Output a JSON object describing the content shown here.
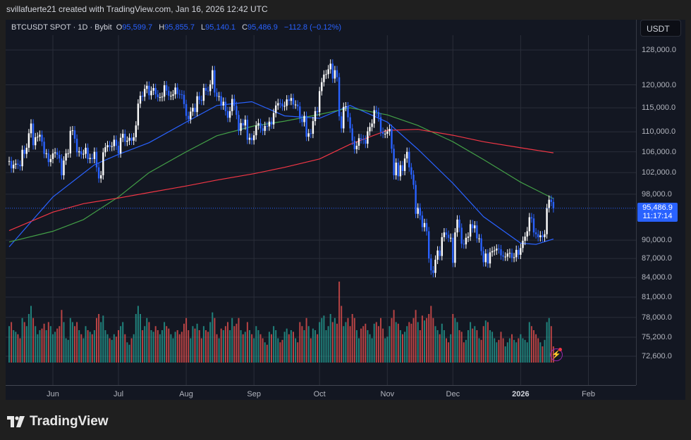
{
  "credit": "svillafuerte21 created with TradingView.com, Jan 16, 2026 12:42 UTC",
  "legend": {
    "symbol": "BTCUSDT SPOT · 1D · Bybit",
    "o_label": "O",
    "open": "95,599.7",
    "h_label": "H",
    "high": "95,855.7",
    "l_label": "L",
    "low": "95,140.1",
    "c_label": "C",
    "close": "95,486.9",
    "change": "−112.8 (−0.12%)"
  },
  "price_axis": {
    "unit": "USDT",
    "current_price": "95,486.9",
    "countdown": "11:17:14"
  },
  "logo_text": "TradingView",
  "colors": {
    "background": "#131722",
    "up_candle": "#ffffff",
    "down_candle": "#2962ff",
    "volume_up": "#26a69a",
    "volume_down": "#ef5350",
    "ma_fast": "#2962ff",
    "ma_mid": "#43a047",
    "ma_slow": "#f23645",
    "last_price": "#2962ff"
  },
  "chart_data": {
    "type": "candlestick",
    "title": "",
    "y_scale": "log",
    "ylim": [
      72000,
      130000
    ],
    "grid": true,
    "y_ticks": [
      "128,000.0",
      "120,000.0",
      "115,000.0",
      "110,000.0",
      "106,000.0",
      "102,000.0",
      "98,000.0",
      "90,000.0",
      "87,000.0",
      "84,000.0",
      "81,000.0",
      "78,000.0",
      "75,200.0",
      "72,600.0"
    ],
    "y_tick_values": [
      128000,
      120000,
      115000,
      110000,
      106000,
      102000,
      98000,
      90000,
      87000,
      84000,
      81000,
      78000,
      75200,
      72600
    ],
    "x_ticks": [
      {
        "label": "Jun",
        "date": "2025-06-01"
      },
      {
        "label": "Jul",
        "date": "2025-07-01"
      },
      {
        "label": "Aug",
        "date": "2025-08-01"
      },
      {
        "label": "Sep",
        "date": "2025-09-01"
      },
      {
        "label": "Oct",
        "date": "2025-10-01"
      },
      {
        "label": "Nov",
        "date": "2025-11-01"
      },
      {
        "label": "Dec",
        "date": "2025-12-01"
      },
      {
        "label": "2026",
        "date": "2026-01-01"
      },
      {
        "label": "Feb",
        "date": "2026-02-01"
      }
    ],
    "start_date": "2025-05-12",
    "end_date": "2026-01-16",
    "daily_close": [
      104200,
      102800,
      103500,
      103700,
      103500,
      103200,
      106400,
      105600,
      106800,
      109700,
      111700,
      107300,
      108900,
      109000,
      109400,
      108000,
      105600,
      105700,
      104000,
      104600,
      105700,
      105900,
      105400,
      104700,
      101500,
      104300,
      105700,
      105700,
      110200,
      110300,
      108600,
      105900,
      106100,
      105500,
      105600,
      106800,
      104600,
      104800,
      104600,
      106000,
      103000,
      100900,
      101500,
      105900,
      106900,
      107300,
      107000,
      107100,
      108400,
      107200,
      105700,
      108800,
      109600,
      108000,
      108200,
      108800,
      108200,
      108900,
      111300,
      115900,
      117600,
      117400,
      119100,
      119800,
      117700,
      118700,
      119300,
      117900,
      117300,
      117300,
      117400,
      119900,
      118700,
      117600,
      117600,
      117900,
      119400,
      118000,
      117900,
      117800,
      115800,
      113300,
      112600,
      114200,
      115000,
      114100,
      117500,
      116700,
      116500,
      119300,
      118700,
      118600,
      120100,
      123300,
      118300,
      117400,
      117500,
      115500,
      116300,
      114300,
      112900,
      114300,
      116900,
      115400,
      113500,
      110200,
      111800,
      111300,
      112500,
      108400,
      108800,
      108300,
      109300,
      111300,
      111800,
      110700,
      110200,
      111200,
      111100,
      112100,
      111500,
      113900,
      115500,
      116000,
      115900,
      115300,
      115400,
      116800,
      116500,
      117100,
      115700,
      115700,
      115300,
      112700,
      112000,
      113300,
      109000,
      109700,
      109600,
      112200,
      114300,
      114100,
      118600,
      120600,
      122300,
      122400,
      123500,
      124800,
      121400,
      123300,
      121700,
      113200,
      110700,
      115200,
      115300,
      113000,
      110700,
      108200,
      106500,
      107200,
      108700,
      108500,
      108400,
      107600,
      110100,
      111000,
      111700,
      114500,
      114100,
      113000,
      110000,
      109600,
      109600,
      110100,
      110600,
      106600,
      101500,
      103900,
      101300,
      103400,
      102300,
      104700,
      106000,
      103000,
      101600,
      99700,
      94500,
      95600,
      94200,
      92200,
      92900,
      91500,
      87000,
      85100,
      84700,
      86800,
      88300,
      87400,
      90500,
      91300,
      90900,
      90400,
      90400,
      86300,
      91300,
      93500,
      92100,
      89400,
      89300,
      90400,
      90600,
      92700,
      92000,
      92500,
      90300,
      90300,
      88200,
      86400,
      87800,
      86200,
      88000,
      88200,
      88300,
      88600,
      88500,
      87500,
      87300,
      87300,
      87800,
      87900,
      87100,
      87200,
      88400,
      87600,
      88700,
      89900,
      90600,
      91500,
      93900,
      93700,
      91300,
      91000,
      90500,
      90800,
      90500,
      91000,
      95500,
      97000,
      96600,
      95486.9
    ],
    "daily_volume_relative": [
      45,
      50,
      40,
      38,
      35,
      30,
      55,
      50,
      45,
      60,
      70,
      55,
      45,
      35,
      40,
      42,
      48,
      40,
      50,
      45,
      35,
      38,
      42,
      45,
      65,
      50,
      30,
      28,
      55,
      50,
      45,
      50,
      40,
      35,
      30,
      45,
      40,
      38,
      35,
      40,
      55,
      60,
      50,
      58,
      40,
      35,
      30,
      28,
      35,
      32,
      40,
      45,
      50,
      35,
      25,
      22,
      30,
      35,
      60,
      70,
      60,
      40,
      45,
      55,
      50,
      40,
      38,
      45,
      40,
      35,
      40,
      50,
      45,
      42,
      35,
      30,
      38,
      40,
      35,
      38,
      48,
      55,
      40,
      30,
      45,
      42,
      48,
      40,
      30,
      45,
      40,
      38,
      50,
      62,
      55,
      35,
      30,
      42,
      40,
      45,
      50,
      40,
      55,
      45,
      48,
      55,
      40,
      35,
      38,
      50,
      40,
      35,
      30,
      45,
      40,
      35,
      30,
      25,
      22,
      38,
      35,
      45,
      40,
      30,
      25,
      28,
      38,
      42,
      35,
      40,
      38,
      30,
      25,
      50,
      45,
      40,
      55,
      45,
      30,
      42,
      40,
      35,
      50,
      55,
      58,
      40,
      45,
      60,
      50,
      55,
      48,
      100,
      70,
      45,
      50,
      55,
      45,
      60,
      55,
      40,
      30,
      42,
      45,
      48,
      40,
      35,
      30,
      48,
      50,
      45,
      55,
      42,
      30,
      32,
      45,
      55,
      65,
      50,
      48,
      40,
      35,
      38,
      45,
      50,
      48,
      55,
      65,
      50,
      40,
      58,
      52,
      55,
      60,
      70,
      55,
      45,
      40,
      35,
      48,
      40,
      30,
      25,
      35,
      60,
      55,
      50,
      40,
      38,
      25,
      28,
      40,
      50,
      42,
      45,
      40,
      30,
      28,
      45,
      52,
      50,
      40,
      38,
      30,
      25,
      28,
      38,
      30,
      20,
      25,
      30,
      35,
      28,
      25,
      30,
      35,
      30,
      28,
      25,
      50,
      45,
      40,
      35,
      30,
      25,
      20,
      28,
      50,
      55,
      45,
      20
    ],
    "moving_averages": [
      {
        "key": "ma_fast",
        "points": [
          [
            "2025-05-12",
            88900
          ],
          [
            "2025-06-01",
            97500
          ],
          [
            "2025-06-20",
            103500
          ],
          [
            "2025-07-01",
            105500
          ],
          [
            "2025-07-15",
            107800
          ],
          [
            "2025-08-01",
            112000
          ],
          [
            "2025-08-15",
            115500
          ],
          [
            "2025-08-31",
            116300
          ],
          [
            "2025-09-15",
            113300
          ],
          [
            "2025-10-01",
            112800
          ],
          [
            "2025-10-15",
            115500
          ],
          [
            "2025-11-01",
            112000
          ],
          [
            "2025-11-15",
            106500
          ],
          [
            "2025-12-01",
            100000
          ],
          [
            "2025-12-15",
            94000
          ],
          [
            "2026-01-01",
            89500
          ],
          [
            "2026-01-08",
            89300
          ],
          [
            "2026-01-16",
            90200
          ]
        ]
      },
      {
        "key": "ma_mid",
        "points": [
          [
            "2025-05-12",
            89700
          ],
          [
            "2025-06-01",
            91500
          ],
          [
            "2025-06-15",
            93500
          ],
          [
            "2025-07-01",
            97500
          ],
          [
            "2025-07-15",
            102000
          ],
          [
            "2025-08-01",
            106000
          ],
          [
            "2025-08-15",
            109200
          ],
          [
            "2025-09-01",
            111200
          ],
          [
            "2025-09-15",
            112200
          ],
          [
            "2025-10-01",
            113600
          ],
          [
            "2025-10-15",
            115000
          ],
          [
            "2025-11-01",
            113500
          ],
          [
            "2025-11-15",
            111300
          ],
          [
            "2025-12-01",
            108000
          ],
          [
            "2025-12-15",
            104500
          ],
          [
            "2026-01-01",
            100200
          ],
          [
            "2026-01-16",
            97200
          ]
        ]
      },
      {
        "key": "ma_slow",
        "points": [
          [
            "2025-05-12",
            91600
          ],
          [
            "2025-06-01",
            94800
          ],
          [
            "2025-06-15",
            96300
          ],
          [
            "2025-07-01",
            97300
          ],
          [
            "2025-07-15",
            98300
          ],
          [
            "2025-08-01",
            99500
          ],
          [
            "2025-08-15",
            100600
          ],
          [
            "2025-09-01",
            101800
          ],
          [
            "2025-09-15",
            103000
          ],
          [
            "2025-10-01",
            104600
          ],
          [
            "2025-10-15",
            107500
          ],
          [
            "2025-11-01",
            110300
          ],
          [
            "2025-11-15",
            110500
          ],
          [
            "2025-12-01",
            109300
          ],
          [
            "2025-12-15",
            108000
          ],
          [
            "2026-01-01",
            106800
          ],
          [
            "2026-01-16",
            105800
          ]
        ]
      }
    ],
    "last_price": 95486.9
  }
}
